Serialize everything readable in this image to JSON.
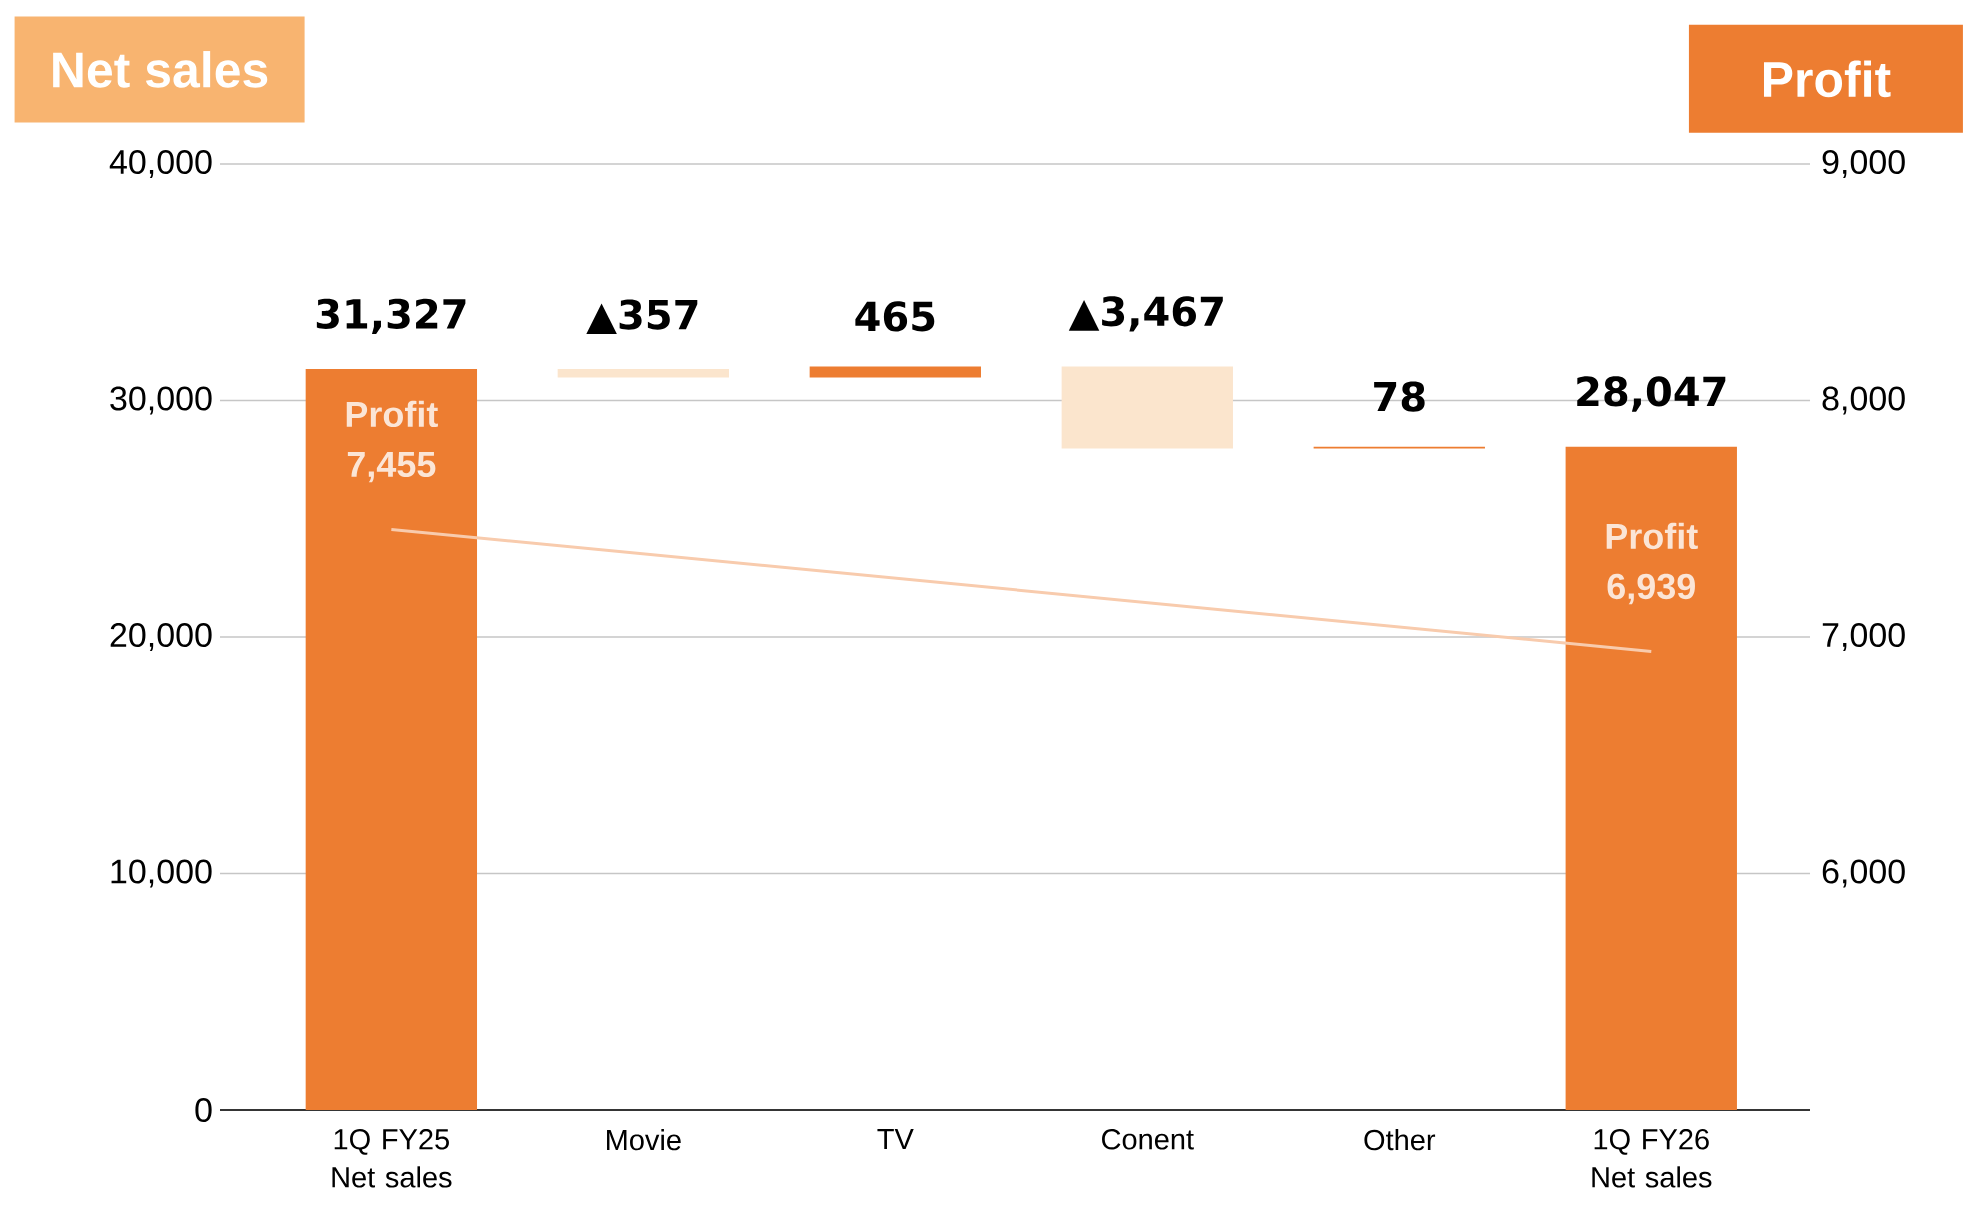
{
  "chart_data": {
    "type": "bar",
    "ylabel": "Net sales",
    "y2label": "Profit",
    "categories": [
      "1Q FY25 Net sales",
      "Movie",
      "TV",
      "Conent",
      "Other",
      "1Q FY26 Net sales"
    ],
    "series": [
      {
        "values": [
          31327,
          -357,
          465,
          -3467,
          78,
          28047
        ],
        "base": [
          0,
          31327,
          30970,
          31435,
          27968,
          0
        ],
        "colors": [
          "#ed7d31",
          "#fbe5cd",
          "#ed7d31",
          "#fbe5cd",
          "#ed7d31",
          "#ed7d31"
        ],
        "value_labels": [
          "31,327",
          "▲357",
          "465",
          "▲3,467",
          "78",
          "28,047"
        ]
      },
      {
        "type": "line",
        "axis": "y2",
        "color": "#f8cbad",
        "x": [
          "1Q FY25 Net sales",
          "1Q FY26 Net sales"
        ],
        "values": [
          7455,
          6939
        ],
        "value_labels": [
          "Profit 7,455",
          "Profit 6,939"
        ]
      }
    ],
    "ylim": [
      0,
      40000
    ],
    "yticks": [
      {
        "value": 0,
        "label": "0"
      },
      {
        "value": 10000,
        "label": "10,000"
      },
      {
        "value": 20000,
        "label": "20,000"
      },
      {
        "value": 30000,
        "label": "30,000"
      },
      {
        "value": 40000,
        "label": "40,000"
      }
    ],
    "y2lim": [
      5000,
      9000
    ],
    "y2ticks": [
      {
        "value": 6000,
        "label": "6,000"
      },
      {
        "value": 7000,
        "label": "7,000"
      },
      {
        "value": 8000,
        "label": "8,000"
      },
      {
        "value": 9000,
        "label": "9,000"
      }
    ],
    "grid": "y"
  }
}
